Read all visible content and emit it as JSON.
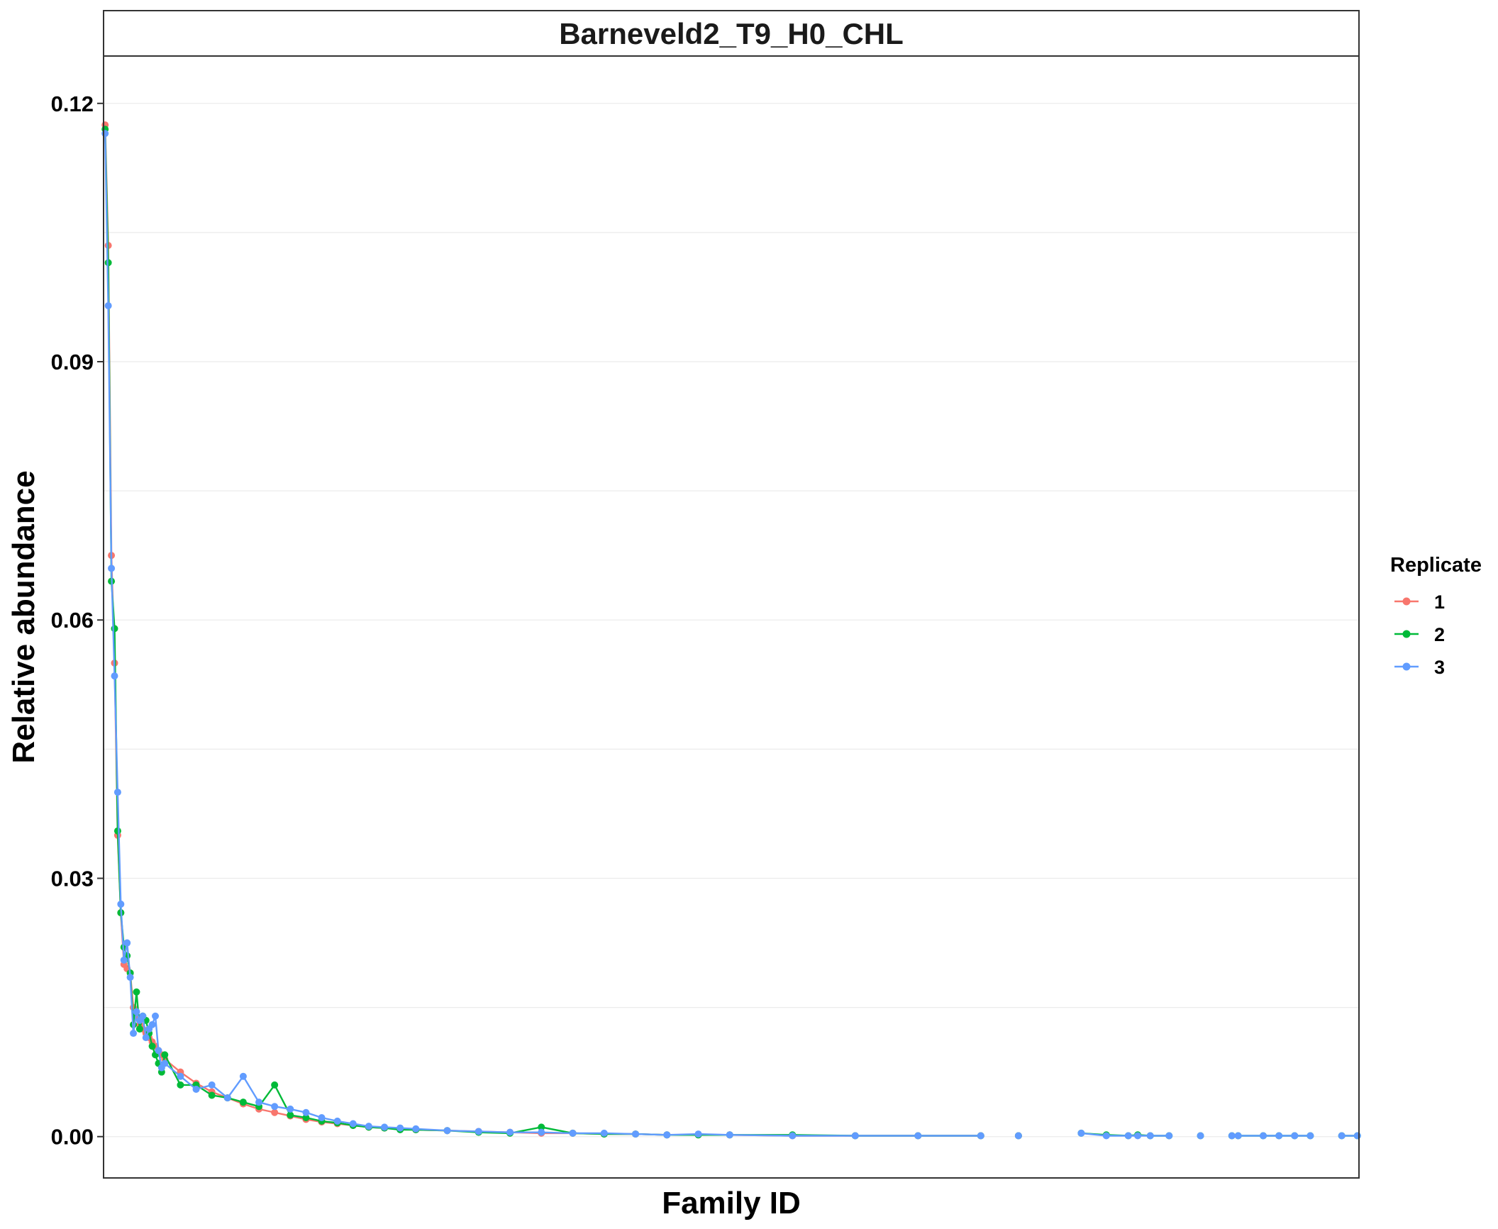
{
  "chart_data": {
    "type": "line",
    "title": "Barneveld2_T9_H0_CHL",
    "xlabel": "Family ID",
    "ylabel": "Relative abundance",
    "ylim": [
      -0.0048,
      0.1255
    ],
    "yticks": [
      0.0,
      0.03,
      0.06,
      0.09,
      0.12
    ],
    "ytick_labels": [
      "0.00",
      "0.03",
      "0.06",
      "0.09",
      "0.12"
    ],
    "xlim": [
      0.5,
      400.5
    ],
    "x_ticks_shown": false,
    "grid": "major horizontal gridlines only",
    "legend": {
      "title": "Replicate",
      "position": "right",
      "entries": [
        "1",
        "2",
        "3"
      ]
    },
    "x": [
      1,
      2,
      3,
      4,
      5,
      6,
      7,
      8,
      9,
      10,
      11,
      12,
      13,
      14,
      15,
      16,
      17,
      18,
      19,
      20,
      25,
      30,
      35,
      40,
      45,
      50,
      55,
      60,
      65,
      70,
      75,
      80,
      85,
      90,
      95,
      100,
      110,
      120,
      130,
      140,
      150,
      160,
      170,
      180,
      190,
      200,
      220,
      240,
      260,
      280,
      292,
      312,
      320,
      327,
      330,
      334,
      340,
      350,
      360,
      362,
      370,
      375,
      380,
      385,
      395,
      400
    ],
    "series": [
      {
        "name": "1",
        "color": "#F8766D",
        "values": [
          0.1175,
          0.1035,
          0.0675,
          0.055,
          0.035,
          0.026,
          0.02,
          0.0195,
          0.019,
          0.015,
          0.014,
          0.013,
          0.0125,
          0.012,
          0.0115,
          0.011,
          0.0105,
          0.01,
          0.0095,
          0.009,
          0.0075,
          0.0062,
          0.0052,
          0.0045,
          0.0038,
          0.0032,
          0.0028,
          0.0024,
          0.002,
          0.0017,
          0.0015,
          0.0013,
          0.0011,
          0.001,
          0.0009,
          0.0008,
          0.0007,
          0.0006,
          0.0005,
          0.0004,
          0.0004,
          0.0003,
          0.0003,
          0.0002,
          0.0002,
          0.0002,
          0.0001,
          0.0001,
          0.0001,
          0.0001,
          0.0001,
          null,
          null,
          null,
          null,
          null,
          null,
          null,
          null,
          null,
          null,
          null,
          null,
          null,
          null,
          null
        ]
      },
      {
        "name": "2",
        "color": "#00BA38",
        "values": [
          0.117,
          0.1015,
          0.0645,
          0.059,
          0.0355,
          0.026,
          0.022,
          0.021,
          0.019,
          0.013,
          0.0168,
          0.0125,
          0.014,
          0.0135,
          0.012,
          0.0105,
          0.0095,
          0.0085,
          0.0075,
          0.0095,
          0.006,
          0.006,
          0.0048,
          0.0045,
          0.004,
          0.0035,
          0.006,
          0.0025,
          0.0022,
          0.0018,
          0.0016,
          0.0013,
          0.0011,
          0.001,
          0.0008,
          0.0008,
          0.0007,
          0.0005,
          0.0004,
          0.0011,
          0.0004,
          0.0003,
          0.0003,
          0.0002,
          0.0002,
          0.0002,
          0.0002,
          0.0001,
          0.0001,
          0.0001,
          0.0001,
          0.0004,
          0.0002,
          0.0001,
          0.0002,
          0.0001,
          0.0001,
          0.0001,
          0.0001,
          0.0001,
          0.0001,
          0.0001,
          0.0001,
          0.0001,
          0.0001,
          0.0001
        ]
      },
      {
        "name": "3",
        "color": "#619CFF",
        "values": [
          0.1165,
          0.0965,
          0.066,
          0.0535,
          0.04,
          0.027,
          0.0205,
          0.0225,
          0.0185,
          0.012,
          0.0145,
          0.0135,
          0.014,
          0.0115,
          0.0125,
          0.013,
          0.014,
          0.01,
          0.008,
          0.0085,
          0.007,
          0.0055,
          0.006,
          0.0045,
          0.007,
          0.004,
          0.0035,
          0.0032,
          0.0028,
          0.0022,
          0.0018,
          0.0015,
          0.0012,
          0.0011,
          0.001,
          0.0009,
          0.0007,
          0.0006,
          0.0005,
          0.0005,
          0.0004,
          0.0004,
          0.0003,
          0.0002,
          0.0003,
          0.0002,
          0.0001,
          0.0001,
          0.0001,
          0.0001,
          0.0001,
          0.0004,
          0.0001,
          0.0001,
          0.0001,
          0.0001,
          0.0001,
          0.0001,
          0.0001,
          0.0001,
          0.0001,
          0.0001,
          0.0001,
          0.0001,
          0.0001,
          0.0001
        ]
      }
    ]
  }
}
